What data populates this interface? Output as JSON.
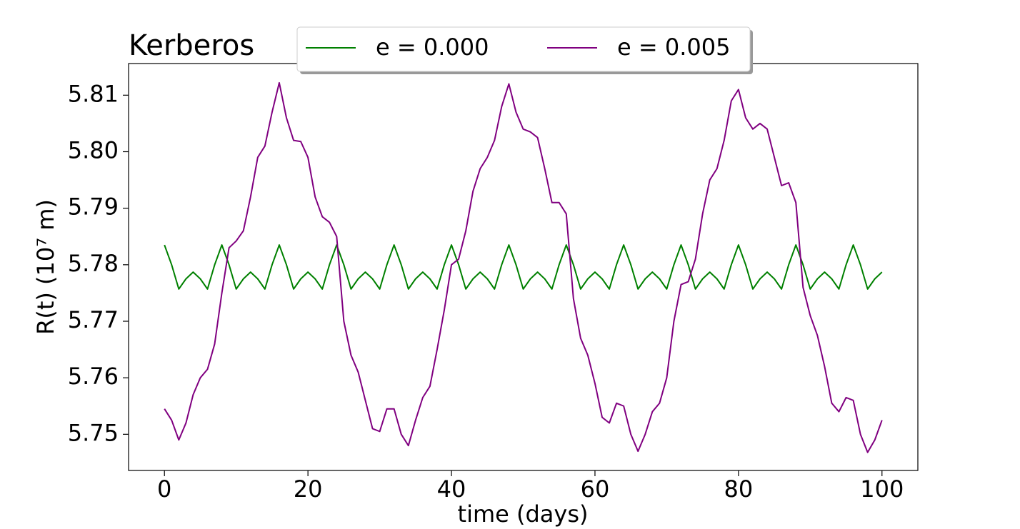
{
  "chart_data": {
    "type": "line",
    "title": "Kerberos",
    "xlabel": "time (days)",
    "ylabel": "R(t) (10⁷ m)",
    "x": [
      0,
      1,
      2,
      3,
      4,
      5,
      6,
      7,
      8,
      9,
      10,
      11,
      12,
      13,
      14,
      15,
      16,
      17,
      18,
      19,
      20,
      21,
      22,
      23,
      24,
      25,
      26,
      27,
      28,
      29,
      30,
      31,
      32,
      33,
      34,
      35,
      36,
      37,
      38,
      39,
      40,
      41,
      42,
      43,
      44,
      45,
      46,
      47,
      48,
      49,
      50,
      51,
      52,
      53,
      54,
      55,
      56,
      57,
      58,
      59,
      60,
      61,
      62,
      63,
      64,
      65,
      66,
      67,
      68,
      69,
      70,
      71,
      72,
      73,
      74,
      75,
      76,
      77,
      78,
      79,
      80,
      81,
      82,
      83,
      84,
      85,
      86,
      87,
      88,
      89,
      90,
      91,
      92,
      93,
      94,
      95,
      96,
      97,
      98,
      99,
      100
    ],
    "series": [
      {
        "name": "e = 0.000",
        "color": "#008000",
        "values": [
          5.7835,
          5.78,
          5.7757,
          5.7775,
          5.7787,
          5.7775,
          5.7757,
          5.78,
          5.7835,
          5.78,
          5.7757,
          5.7775,
          5.7787,
          5.7775,
          5.7757,
          5.78,
          5.7835,
          5.78,
          5.7757,
          5.7775,
          5.7787,
          5.7775,
          5.7757,
          5.78,
          5.7835,
          5.78,
          5.7757,
          5.7775,
          5.7787,
          5.7775,
          5.7757,
          5.78,
          5.7835,
          5.78,
          5.7757,
          5.7775,
          5.7787,
          5.7775,
          5.7757,
          5.78,
          5.7835,
          5.78,
          5.7757,
          5.7775,
          5.7787,
          5.7775,
          5.7757,
          5.78,
          5.7835,
          5.78,
          5.7757,
          5.7775,
          5.7787,
          5.7775,
          5.7757,
          5.78,
          5.7835,
          5.78,
          5.7757,
          5.7775,
          5.7787,
          5.7775,
          5.7757,
          5.78,
          5.7835,
          5.78,
          5.7757,
          5.7775,
          5.7787,
          5.7775,
          5.7757,
          5.78,
          5.7835,
          5.78,
          5.7757,
          5.7775,
          5.7787,
          5.7775,
          5.7757,
          5.78,
          5.7835,
          5.78,
          5.7757,
          5.7775,
          5.7787,
          5.7775,
          5.7757,
          5.78,
          5.7835,
          5.78,
          5.7757,
          5.7775,
          5.7787,
          5.7775,
          5.7757,
          5.78,
          5.7835,
          5.78,
          5.7757,
          5.7775,
          5.7787
        ]
      },
      {
        "name": "e = 0.005",
        "color": "#800080",
        "values": [
          5.7545,
          5.7525,
          5.749,
          5.752,
          5.757,
          5.76,
          5.7615,
          5.766,
          5.775,
          5.783,
          5.7842,
          5.786,
          5.792,
          5.799,
          5.801,
          5.807,
          5.8122,
          5.806,
          5.802,
          5.8018,
          5.799,
          5.792,
          5.7885,
          5.7875,
          5.785,
          5.77,
          5.764,
          5.761,
          5.756,
          5.751,
          5.7505,
          5.7545,
          5.7545,
          5.75,
          5.748,
          5.7525,
          5.7565,
          5.7585,
          5.765,
          5.772,
          5.78,
          5.781,
          5.786,
          5.793,
          5.797,
          5.799,
          5.802,
          5.808,
          5.812,
          5.807,
          5.804,
          5.8035,
          5.8025,
          5.797,
          5.791,
          5.791,
          5.789,
          5.774,
          5.767,
          5.764,
          5.759,
          5.753,
          5.752,
          5.7555,
          5.755,
          5.75,
          5.747,
          5.75,
          5.754,
          5.7555,
          5.76,
          5.77,
          5.7765,
          5.777,
          5.781,
          5.789,
          5.795,
          5.797,
          5.802,
          5.809,
          5.811,
          5.806,
          5.804,
          5.805,
          5.804,
          5.799,
          5.794,
          5.7945,
          5.791,
          5.776,
          5.771,
          5.7675,
          5.762,
          5.7555,
          5.754,
          5.7565,
          5.756,
          5.75,
          5.7468,
          5.749,
          5.7525
        ]
      }
    ],
    "xlim": [
      -5,
      105
    ],
    "xticks": [
      0,
      20,
      40,
      60,
      80,
      100
    ],
    "ylim": [
      5.7436,
      5.8156
    ],
    "yticks": [
      5.75,
      5.76,
      5.77,
      5.78,
      5.79,
      {
        "value": 5.8,
        "label": "5.80"
      },
      5.81
    ],
    "legend": "upper center"
  }
}
